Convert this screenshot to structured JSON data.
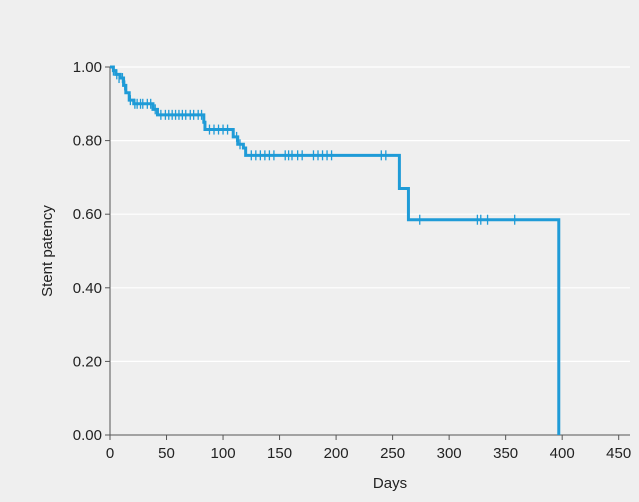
{
  "chart_data": {
    "type": "line",
    "subtype": "kaplan-meier",
    "title": "",
    "xlabel": "Days",
    "ylabel": "Stent patency",
    "xlim": [
      0,
      460
    ],
    "ylim": [
      0,
      1.0
    ],
    "x_ticks": [
      0,
      50,
      100,
      150,
      200,
      250,
      300,
      350,
      400,
      450
    ],
    "y_ticks": [
      0.0,
      0.2,
      0.4,
      0.6,
      0.8,
      1.0
    ],
    "x_tick_labels": [
      "0",
      "50",
      "100",
      "150",
      "200",
      "250",
      "300",
      "350",
      "400",
      "450"
    ],
    "y_tick_labels": [
      "0.00",
      "0.20",
      "0.40",
      "0.60",
      "0.80",
      "1.00"
    ],
    "grid": "horizontal",
    "legend": "none",
    "colors": {
      "series": "#1f9bd7",
      "grid": "#ffffff",
      "background": "#efefef",
      "axis": "#555555"
    },
    "series": [
      {
        "steps": [
          [
            0,
            1.0
          ],
          [
            3,
            0.99
          ],
          [
            5,
            0.98
          ],
          [
            9,
            0.97
          ],
          [
            12,
            0.95
          ],
          [
            14,
            0.93
          ],
          [
            17,
            0.91
          ],
          [
            21,
            0.9
          ],
          [
            38,
            0.885
          ],
          [
            42,
            0.87
          ],
          [
            83,
            0.85
          ],
          [
            84,
            0.83
          ],
          [
            109,
            0.81
          ],
          [
            113,
            0.79
          ],
          [
            118,
            0.78
          ],
          [
            120,
            0.76
          ],
          [
            256,
            0.67
          ],
          [
            264,
            0.585
          ],
          [
            397,
            0.585
          ],
          [
            397,
            0.0
          ]
        ],
        "end_x": 397,
        "censored": [
          [
            3,
            0.99
          ],
          [
            6,
            0.98
          ],
          [
            8,
            0.97
          ],
          [
            11,
            0.97
          ],
          [
            13,
            0.95
          ],
          [
            18,
            0.91
          ],
          [
            22,
            0.9
          ],
          [
            24,
            0.9
          ],
          [
            27,
            0.9
          ],
          [
            29,
            0.9
          ],
          [
            33,
            0.9
          ],
          [
            36,
            0.9
          ],
          [
            40,
            0.885
          ],
          [
            45,
            0.87
          ],
          [
            49,
            0.87
          ],
          [
            52,
            0.87
          ],
          [
            55,
            0.87
          ],
          [
            58,
            0.87
          ],
          [
            61,
            0.87
          ],
          [
            64,
            0.87
          ],
          [
            67,
            0.87
          ],
          [
            71,
            0.87
          ],
          [
            74,
            0.87
          ],
          [
            78,
            0.87
          ],
          [
            81,
            0.87
          ],
          [
            88,
            0.83
          ],
          [
            92,
            0.83
          ],
          [
            96,
            0.83
          ],
          [
            100,
            0.83
          ],
          [
            104,
            0.83
          ],
          [
            112,
            0.81
          ],
          [
            115,
            0.79
          ],
          [
            125,
            0.76
          ],
          [
            129,
            0.76
          ],
          [
            133,
            0.76
          ],
          [
            137,
            0.76
          ],
          [
            141,
            0.76
          ],
          [
            145,
            0.76
          ],
          [
            155,
            0.76
          ],
          [
            158,
            0.76
          ],
          [
            161,
            0.76
          ],
          [
            166,
            0.76
          ],
          [
            170,
            0.76
          ],
          [
            180,
            0.76
          ],
          [
            184,
            0.76
          ],
          [
            188,
            0.76
          ],
          [
            192,
            0.76
          ],
          [
            196,
            0.76
          ],
          [
            240,
            0.76
          ],
          [
            244,
            0.76
          ],
          [
            274,
            0.585
          ],
          [
            325,
            0.585
          ],
          [
            328,
            0.585
          ],
          [
            334,
            0.585
          ],
          [
            358,
            0.585
          ]
        ]
      }
    ]
  }
}
